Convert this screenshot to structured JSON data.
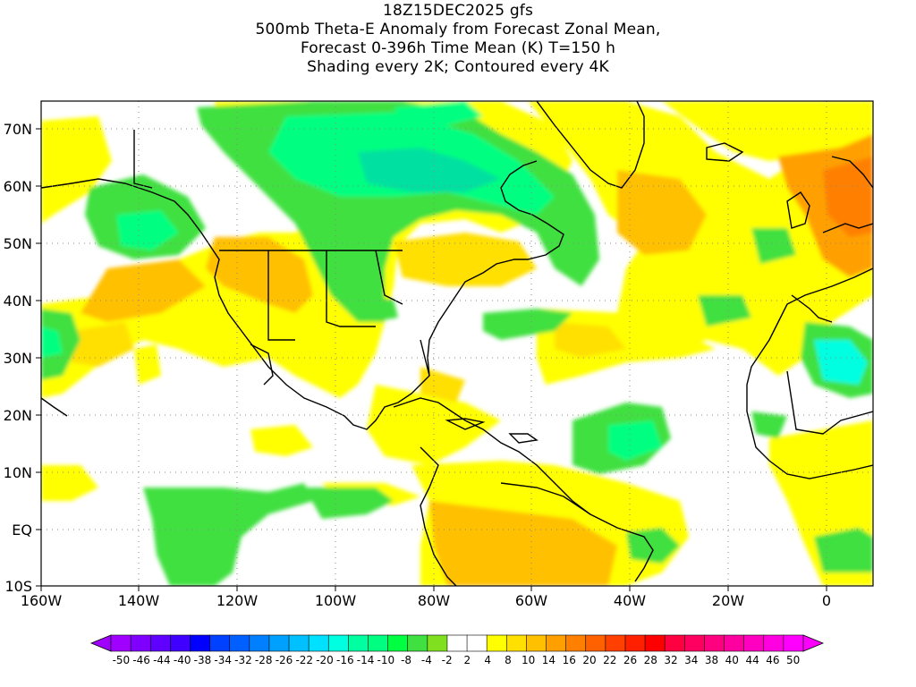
{
  "title": {
    "line1": "18Z15DEC2025 gfs",
    "line2": "500mb Theta-E Anomaly from Forecast Zonal Mean,",
    "line3": "Forecast 0-396h Time Mean (K) T=150 h",
    "line4": "Shading every 2K; Contoured every 4K"
  },
  "map": {
    "lon_labels": [
      "160W",
      "140W",
      "120W",
      "100W",
      "80W",
      "60W",
      "40W",
      "20W",
      "0"
    ],
    "lat_labels": [
      "70N",
      "60N",
      "50N",
      "40N",
      "30N",
      "20N",
      "10N",
      "EQ",
      "10S"
    ]
  },
  "colorbar": {
    "labels": [
      "-50",
      "-46",
      "-44",
      "-40",
      "-38",
      "-34",
      "-32",
      "-28",
      "-26",
      "-22",
      "-20",
      "-16",
      "-14",
      "-10",
      "-8",
      "-4",
      "-2",
      "2",
      "4",
      "8",
      "10",
      "14",
      "16",
      "20",
      "22",
      "26",
      "28",
      "32",
      "34",
      "38",
      "40",
      "44",
      "46",
      "50"
    ],
    "colors": [
      "#a000ff",
      "#8000ff",
      "#6000ff",
      "#4000ff",
      "#0000ff",
      "#0040ff",
      "#0060ff",
      "#0080ff",
      "#00a0ff",
      "#00c0ff",
      "#00e0ff",
      "#00ffe0",
      "#00ffa0",
      "#00ff80",
      "#00ff40",
      "#40e040",
      "#80e020",
      "#ffffff",
      "#ffffff",
      "#ffff00",
      "#ffe000",
      "#ffc000",
      "#ffa000",
      "#ff8000",
      "#ff6000",
      "#ff4000",
      "#ff2000",
      "#ff0000",
      "#ff0040",
      "#ff0060",
      "#ff0080",
      "#ff00a0",
      "#ff00c0",
      "#ff00e0",
      "#ff00ff"
    ]
  }
}
